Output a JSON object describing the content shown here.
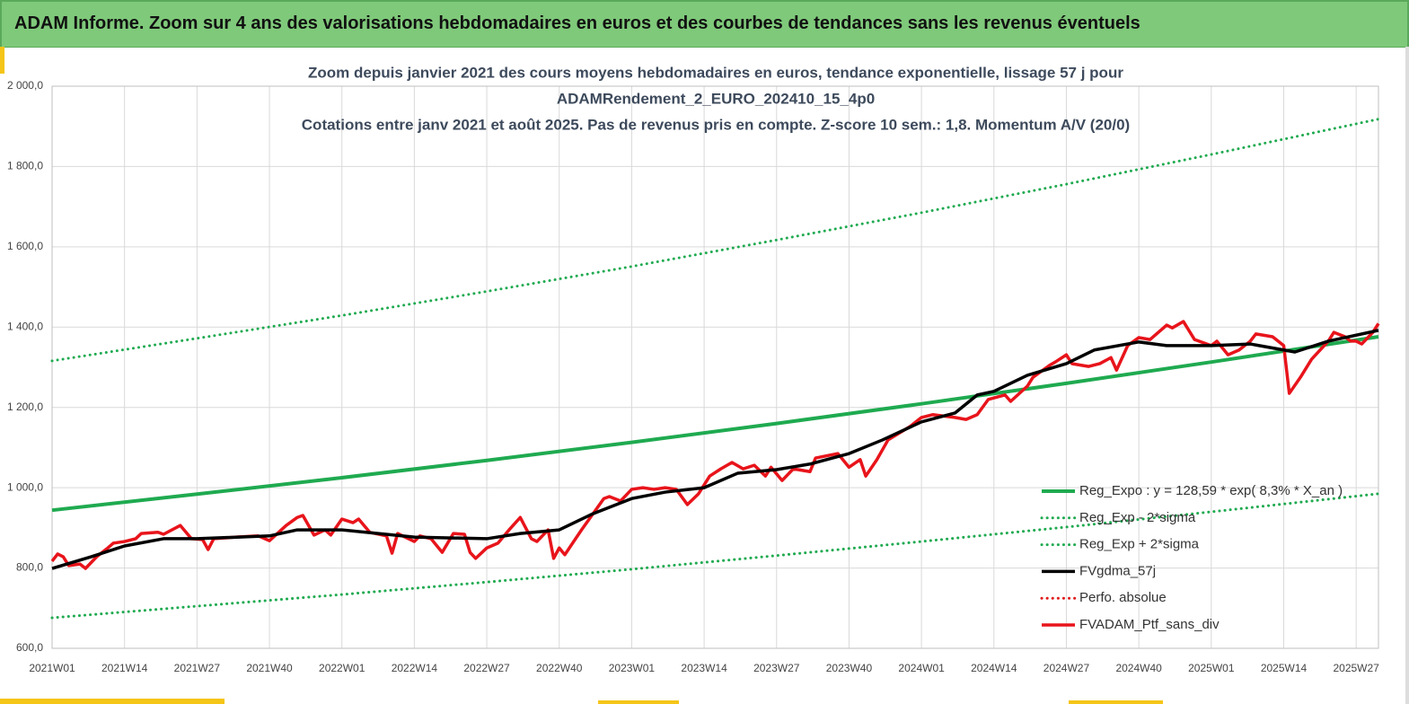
{
  "header": {
    "title": "ADAM Informe. Zoom sur 4 ans des valorisations hebdomadaires en euros et des courbes de tendances sans les revenus éventuels"
  },
  "chart_data": {
    "type": "line",
    "title": [
      "Zoom depuis janvier 2021 des cours moyens hebdomadaires  en euros, tendance exponentielle, lissage 57 j pour",
      "ADAMRendement_2_EURO_202410_15_4p0",
      "Cotations  entre janv 2021 et août 2025. Pas de revenus pris en compte. Z-score 10 sem.: 1,8. Momentum A/V (20/0)"
    ],
    "xlim": [
      0,
      238
    ],
    "xticks": [
      {
        "value": 0,
        "label": "2021W01"
      },
      {
        "value": 13,
        "label": "2021W14"
      },
      {
        "value": 26,
        "label": "2021W27"
      },
      {
        "value": 39,
        "label": "2021W40"
      },
      {
        "value": 52,
        "label": "2022W01"
      },
      {
        "value": 65,
        "label": "2022W14"
      },
      {
        "value": 78,
        "label": "2022W27"
      },
      {
        "value": 91,
        "label": "2022W40"
      },
      {
        "value": 104,
        "label": "2023W01"
      },
      {
        "value": 117,
        "label": "2023W14"
      },
      {
        "value": 130,
        "label": "2023W27"
      },
      {
        "value": 143,
        "label": "2023W40"
      },
      {
        "value": 156,
        "label": "2024W01"
      },
      {
        "value": 169,
        "label": "2024W14"
      },
      {
        "value": 182,
        "label": "2024W27"
      },
      {
        "value": 195,
        "label": "2024W40"
      },
      {
        "value": 208,
        "label": "2025W01"
      },
      {
        "value": 221,
        "label": "2025W14"
      },
      {
        "value": 234,
        "label": "2025W27"
      }
    ],
    "ylim": [
      600,
      2000
    ],
    "yticks": [
      {
        "value": 600,
        "label": "600,0"
      },
      {
        "value": 800,
        "label": "800,0"
      },
      {
        "value": 1000,
        "label": "1 000,0"
      },
      {
        "value": 1200,
        "label": "1 200,0"
      },
      {
        "value": 1400,
        "label": "1 400,0"
      },
      {
        "value": 1600,
        "label": "1 600,0"
      },
      {
        "value": 1800,
        "label": "1 800,0"
      },
      {
        "value": 2000,
        "label": "2 000,0"
      }
    ],
    "grid": true,
    "series": [
      {
        "name": "Reg_Expo : y = 128,59 * exp( 8,3% *  X_an )",
        "color": "#1faa50",
        "style": "solid",
        "x": [
          0,
          26,
          52,
          78,
          104,
          130,
          156,
          182,
          208,
          238
        ],
        "values": [
          944,
          984,
          1025,
          1068,
          1113,
          1160,
          1209,
          1260,
          1313,
          1376
        ]
      },
      {
        "name": "Reg_Exp - 2*sigma",
        "color": "#1faa50",
        "style": "dotted",
        "x": [
          0,
          26,
          52,
          78,
          104,
          130,
          156,
          182,
          208,
          238
        ],
        "values": [
          676,
          705,
          734,
          765,
          797,
          831,
          866,
          902,
          940,
          985
        ]
      },
      {
        "name": "Reg_Exp + 2*sigma",
        "color": "#1faa50",
        "style": "dotted",
        "x": [
          0,
          26,
          52,
          78,
          104,
          130,
          156,
          182,
          208,
          238
        ],
        "values": [
          1316,
          1372,
          1429,
          1489,
          1551,
          1617,
          1685,
          1756,
          1830,
          1918
        ]
      },
      {
        "name": "FVgdma_57j",
        "color": "#000000",
        "style": "solid",
        "x": [
          0,
          7,
          13,
          20,
          26,
          39,
          44,
          52,
          65,
          78,
          84,
          91,
          97,
          104,
          110,
          117,
          123,
          130,
          136,
          143,
          149,
          156,
          162,
          166,
          169,
          175,
          182,
          187,
          195,
          200,
          208,
          215,
          221,
          223,
          229,
          238
        ],
        "values": [
          799,
          828,
          855,
          873,
          873,
          880,
          895,
          895,
          877,
          873,
          886,
          895,
          935,
          973,
          989,
          1000,
          1036,
          1045,
          1059,
          1085,
          1119,
          1164,
          1186,
          1231,
          1240,
          1280,
          1309,
          1343,
          1363,
          1354,
          1354,
          1358,
          1343,
          1338,
          1365,
          1392
        ]
      },
      {
        "name": "Perfo. absolue",
        "color": "#e01b1b",
        "style": "dotted",
        "x": [
          0,
          238
        ],
        "values": [
          null,
          null
        ]
      },
      {
        "name": "FVADAM_Ptf_sans_div",
        "color": "#e8141b",
        "style": "solid",
        "x": [
          0,
          1,
          2,
          3,
          5,
          6,
          8,
          10,
          11,
          13,
          15,
          16,
          19,
          20,
          23,
          25,
          27,
          28,
          29,
          33,
          37,
          39,
          42,
          44,
          45,
          47,
          49,
          50,
          52,
          54,
          55,
          57,
          60,
          61,
          62,
          65,
          66,
          68,
          70,
          72,
          74,
          75,
          76,
          78,
          80,
          82,
          84,
          86,
          87,
          89,
          90,
          91,
          92,
          95,
          99,
          100,
          102,
          104,
          106,
          108,
          110,
          112,
          114,
          116,
          118,
          120,
          122,
          124,
          126,
          128,
          129,
          131,
          133,
          136,
          137,
          141,
          143,
          145,
          146,
          148,
          150,
          154,
          156,
          158,
          162,
          164,
          166,
          168,
          171,
          172,
          175,
          176,
          179,
          180,
          182,
          183,
          186,
          188,
          190,
          191,
          193,
          195,
          197,
          200,
          201,
          203,
          205,
          208,
          209,
          211,
          213,
          215,
          216,
          219,
          221,
          222,
          224,
          226,
          229,
          230,
          232,
          233,
          234,
          235,
          237,
          238
        ],
        "values": [
          817,
          835,
          828,
          806,
          810,
          799,
          828,
          850,
          862,
          866,
          873,
          886,
          889,
          884,
          906,
          873,
          871,
          846,
          873,
          877,
          880,
          868,
          906,
          926,
          931,
          882,
          895,
          882,
          922,
          913,
          922,
          889,
          880,
          837,
          886,
          866,
          880,
          873,
          839,
          886,
          884,
          839,
          824,
          850,
          862,
          895,
          926,
          873,
          866,
          895,
          824,
          850,
          833,
          895,
          973,
          978,
          967,
          996,
          1000,
          996,
          1000,
          996,
          958,
          985,
          1029,
          1047,
          1063,
          1047,
          1056,
          1029,
          1051,
          1018,
          1047,
          1040,
          1074,
          1085,
          1051,
          1070,
          1029,
          1070,
          1119,
          1153,
          1175,
          1182,
          1175,
          1170,
          1182,
          1220,
          1231,
          1215,
          1253,
          1275,
          1305,
          1313,
          1331,
          1309,
          1302,
          1309,
          1324,
          1293,
          1354,
          1374,
          1369,
          1405,
          1398,
          1414,
          1369,
          1354,
          1365,
          1331,
          1343,
          1365,
          1383,
          1376,
          1354,
          1235,
          1275,
          1320,
          1365,
          1387,
          1376,
          1365,
          1365,
          1358,
          1387,
          1409
        ]
      }
    ]
  }
}
